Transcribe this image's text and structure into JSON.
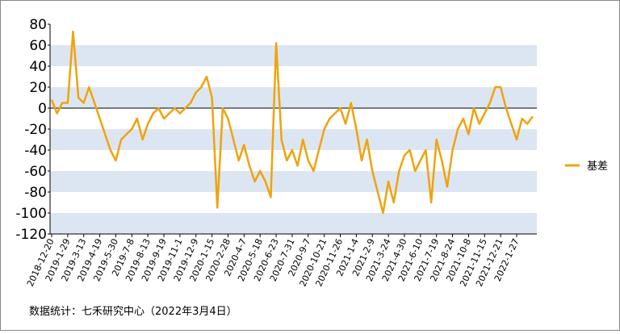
{
  "chart_data": {
    "type": "line",
    "categories": [
      "2018-12-20",
      null,
      null,
      "2019-1-29",
      null,
      null,
      "2019-3-13",
      null,
      null,
      "2019-4-19",
      null,
      null,
      "2019-5-30",
      null,
      null,
      "2019-7-8",
      null,
      null,
      "2019-8-13",
      null,
      null,
      "2019-9-19",
      null,
      null,
      "2019-11-1",
      null,
      null,
      "2019-12-9",
      null,
      null,
      "2020-1-15",
      null,
      null,
      "2020-2-28",
      null,
      null,
      "2020-4-7",
      null,
      null,
      "2020-5-18",
      null,
      null,
      "2020-6-23",
      null,
      null,
      "2020-7-31",
      null,
      null,
      "2020-9-7",
      null,
      null,
      "2020-10-21",
      null,
      null,
      "2020-11-26",
      null,
      null,
      "2021-1-4",
      null,
      null,
      "2021-2-9",
      null,
      null,
      "2021-3-24",
      null,
      null,
      "2021-4-30",
      null,
      null,
      "2021-6-10",
      null,
      null,
      "2021-7-19",
      null,
      null,
      "2021-8-24",
      null,
      null,
      "2021-10-8",
      null,
      null,
      "2021-11-15",
      null,
      null,
      "2021-12-21",
      null,
      null,
      "2022-1-27",
      null,
      null,
      null
    ],
    "series": [
      {
        "name": "基差",
        "color": "#f0a30a",
        "values": [
          8,
          -5,
          5,
          5,
          73,
          10,
          5,
          20,
          5,
          -10,
          -25,
          -40,
          -50,
          -30,
          -25,
          -20,
          -10,
          -30,
          -15,
          -5,
          0,
          -10,
          -5,
          0,
          -5,
          0,
          5,
          15,
          20,
          30,
          10,
          -95,
          0,
          -10,
          -30,
          -50,
          -35,
          -55,
          -70,
          -60,
          -70,
          -85,
          62,
          -30,
          -50,
          -40,
          -55,
          -30,
          -50,
          -60,
          -40,
          -20,
          -10,
          -5,
          0,
          -15,
          5,
          -20,
          -50,
          -30,
          -60,
          -80,
          -100,
          -70,
          -90,
          -60,
          -45,
          -40,
          -60,
          -50,
          -40,
          -90,
          -30,
          -50,
          -75,
          -40,
          -20,
          -10,
          -25,
          0,
          -15,
          -5,
          5,
          20,
          20,
          0,
          -15,
          -30,
          -10,
          -15,
          -8
        ]
      }
    ],
    "ylim": [
      -120,
      80
    ],
    "yticks": [
      -120,
      -100,
      -80,
      -60,
      -40,
      -20,
      0,
      20,
      40,
      60,
      80
    ],
    "legend": "right",
    "footnote": "数据统计：七禾研究中心（2022年3月4日）"
  }
}
